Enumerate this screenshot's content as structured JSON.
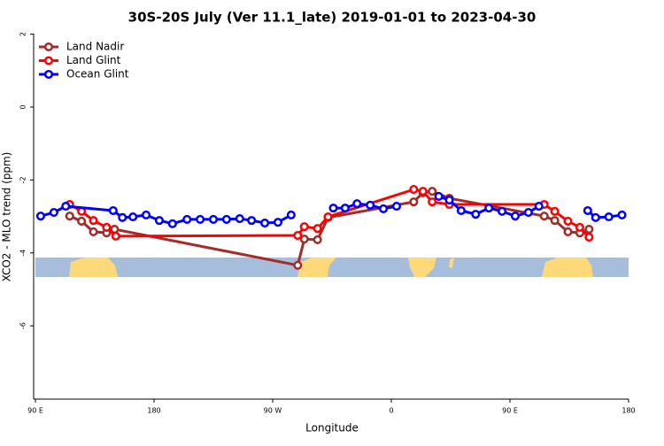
{
  "chart_data": {
    "type": "line",
    "title": "30S-20S July (Ver 11.1_late)   2019-01-01 to 2023-04-30",
    "x_label": "Longitude",
    "y_label": "XCO2 - MLO trend (ppm)",
    "xlim": [
      90,
      540
    ],
    "ylim": [
      -8,
      2
    ],
    "xticks": [
      {
        "value": 90,
        "label": "90 E"
      },
      180,
      {
        "value": 270,
        "label": "90 W"
      },
      {
        "value": 360,
        "label": "0"
      },
      {
        "value": 450,
        "label": "90 E"
      },
      {
        "value": 540,
        "label": "180"
      }
    ],
    "yticks": [
      -6,
      -4,
      -2,
      0,
      2
    ],
    "legend": "top-left",
    "series": [
      {
        "name": "Land Nadir",
        "color": "#a52a2a",
        "x": [
          116,
          125,
          134,
          144,
          150,
          289,
          294,
          304,
          312,
          377,
          384,
          391,
          404,
          476,
          484,
          494,
          503,
          510
        ],
        "values": [
          -2.99,
          -3.13,
          -3.42,
          -3.45,
          -3.35,
          -4.34,
          -3.62,
          -3.64,
          -3.03,
          -2.6,
          -2.35,
          -2.31,
          -2.5,
          -2.99,
          -3.11,
          -3.42,
          -3.45,
          -3.35
        ]
      },
      {
        "name": "Land Glint",
        "color": "#ff0000",
        "x": [
          116,
          125,
          134,
          144,
          151,
          289,
          294,
          304,
          312,
          377,
          384,
          391,
          404,
          476,
          484,
          494,
          503,
          510
        ],
        "values": [
          -2.67,
          -2.86,
          -3.11,
          -3.3,
          -3.54,
          -3.52,
          -3.28,
          -3.33,
          -3.01,
          -2.26,
          -2.31,
          -2.6,
          -2.67,
          -2.67,
          -2.86,
          -3.13,
          -3.3,
          -3.57
        ]
      },
      {
        "name": "Ocean Glint",
        "color": "#0000ff",
        "x": [
          94,
          104,
          113,
          149,
          156,
          164,
          174,
          184,
          194,
          205,
          215,
          225,
          235,
          245,
          254,
          264,
          274,
          284,
          300,
          316,
          325,
          334,
          344,
          354,
          364,
          380,
          396,
          404,
          413,
          424,
          434,
          444,
          454,
          464,
          472,
          490,
          509,
          515,
          525,
          535
        ],
        "values": [
          -2.99,
          -2.89,
          -2.72,
          -2.84,
          -3.03,
          -3.01,
          -2.96,
          -3.11,
          -3.2,
          -3.08,
          -3.08,
          -3.08,
          -3.08,
          -3.06,
          -3.11,
          -3.18,
          -3.16,
          -2.96,
          null,
          -2.77,
          -2.77,
          -2.65,
          -2.69,
          -2.79,
          -2.72,
          null,
          -2.45,
          -2.55,
          -2.84,
          -2.94,
          -2.77,
          -2.86,
          -2.99,
          -2.89,
          -2.72,
          null,
          -2.84,
          -3.03,
          -3.01,
          -2.96
        ]
      }
    ]
  }
}
